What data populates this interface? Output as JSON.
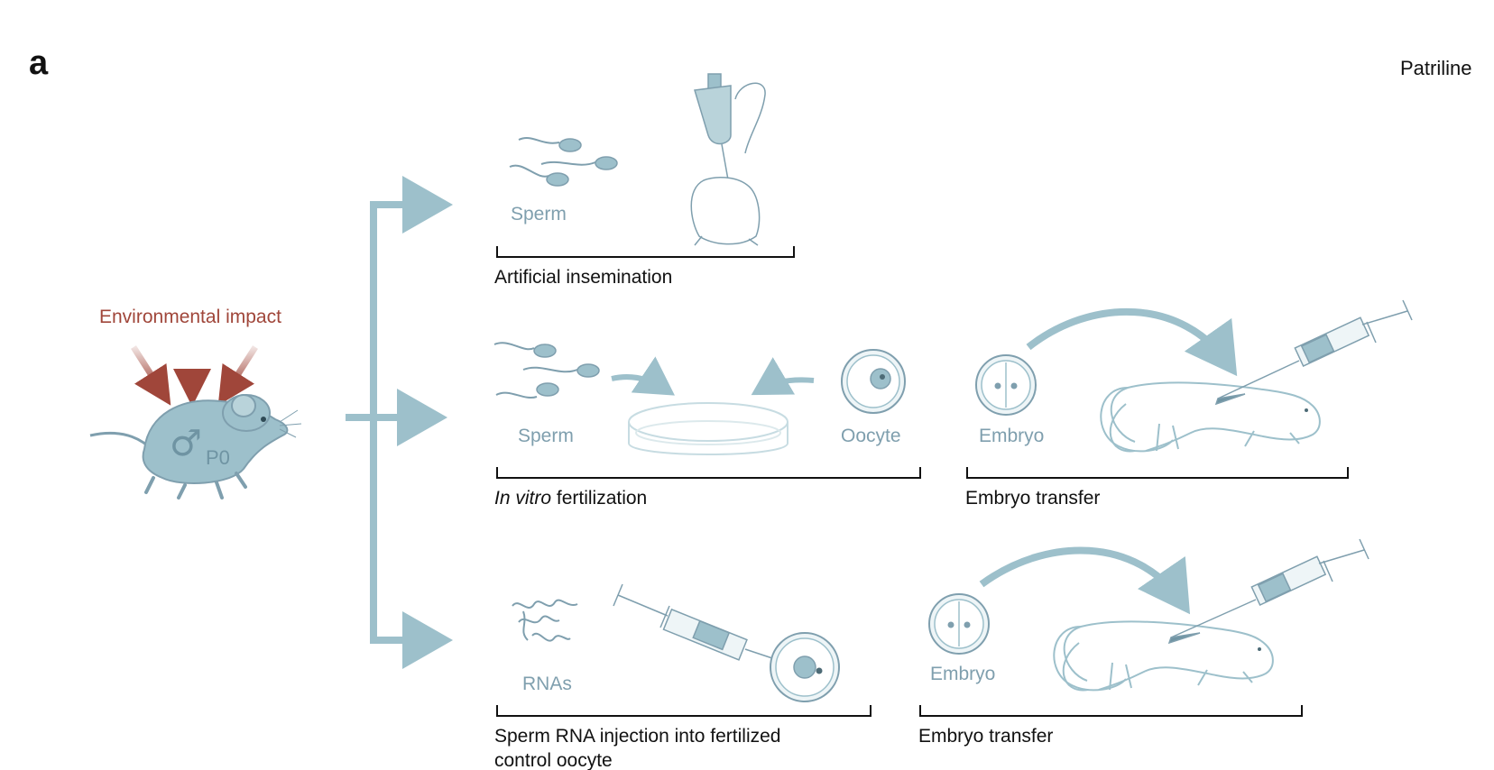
{
  "panel_letter": "a",
  "title": "Patriline",
  "source": {
    "label": "Environmental impact",
    "mouse_symbol": "♂",
    "mouse_label": "P0"
  },
  "routes": [
    {
      "items": [
        "Sperm"
      ],
      "caption": "Artificial insemination"
    },
    {
      "items": [
        "Sperm",
        "Oocyte",
        "Embryo"
      ],
      "caption_italic": "In vitro",
      "caption": " fertilization",
      "caption2": "Embryo transfer"
    },
    {
      "items": [
        "RNAs",
        "Embryo"
      ],
      "caption": "Sperm RNA injection into fertilized",
      "caption_line2": "control oocyte",
      "caption2": "Embryo transfer"
    }
  ],
  "colors": {
    "illustration": "#9dc0cb",
    "illustration_dark": "#6f94a3",
    "arrow_red": "#a0463a",
    "bracket": "#111111"
  },
  "icons": [
    "mouse-icon",
    "sperm-icon",
    "insemination-pipette-icon",
    "petri-dish-icon",
    "oocyte-icon",
    "embryo-icon",
    "syringe-icon",
    "mouse-outline-icon",
    "rna-icon"
  ]
}
